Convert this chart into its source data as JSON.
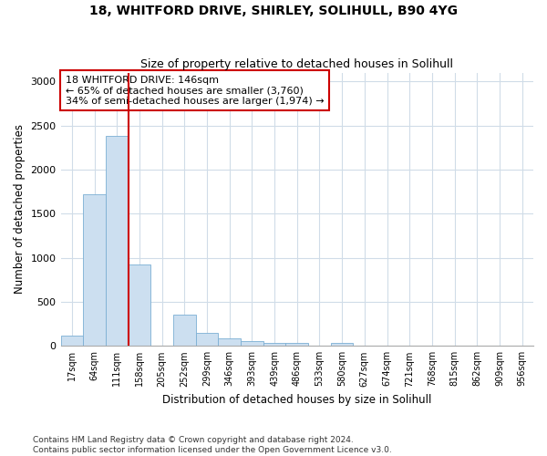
{
  "title1": "18, WHITFORD DRIVE, SHIRLEY, SOLIHULL, B90 4YG",
  "title2": "Size of property relative to detached houses in Solihull",
  "xlabel": "Distribution of detached houses by size in Solihull",
  "ylabel": "Number of detached properties",
  "bin_labels": [
    "17sqm",
    "64sqm",
    "111sqm",
    "158sqm",
    "205sqm",
    "252sqm",
    "299sqm",
    "346sqm",
    "393sqm",
    "439sqm",
    "486sqm",
    "533sqm",
    "580sqm",
    "627sqm",
    "674sqm",
    "721sqm",
    "768sqm",
    "815sqm",
    "862sqm",
    "909sqm",
    "956sqm"
  ],
  "bar_values": [
    120,
    1720,
    2380,
    920,
    0,
    350,
    150,
    85,
    55,
    30,
    30,
    0,
    30,
    0,
    0,
    0,
    0,
    0,
    0,
    0,
    0
  ],
  "bar_color": "#ccdff0",
  "bar_edgecolor": "#7bafd4",
  "ylim": [
    0,
    3100
  ],
  "yticks": [
    0,
    500,
    1000,
    1500,
    2000,
    2500,
    3000
  ],
  "vline_x_idx": 3,
  "vline_color": "#cc0000",
  "annotation_title": "18 WHITFORD DRIVE: 146sqm",
  "annotation_line1": "← 65% of detached houses are smaller (3,760)",
  "annotation_line2": "34% of semi-detached houses are larger (1,974) →",
  "annotation_box_color": "#cc0000",
  "footnote1": "Contains HM Land Registry data © Crown copyright and database right 2024.",
  "footnote2": "Contains public sector information licensed under the Open Government Licence v3.0.",
  "background_color": "#ffffff",
  "grid_color": "#d0dce8"
}
